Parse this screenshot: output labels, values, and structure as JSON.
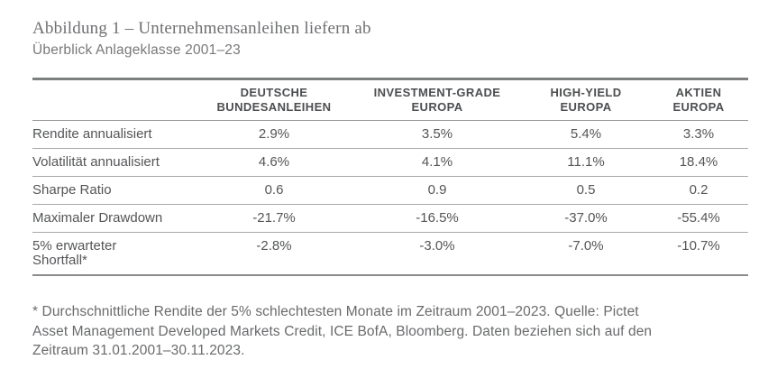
{
  "header": {
    "title": "Abbildung 1 – Unternehmensanleihen liefern ab",
    "subtitle": "Überblick Anlageklasse 2001–23"
  },
  "table": {
    "columns": [
      {
        "label": "DEUTSCHE\nBUNDESANLEIHEN"
      },
      {
        "label": "INVESTMENT-GRADE\nEUROPA"
      },
      {
        "label": "HIGH-YIELD\nEUROPA"
      },
      {
        "label": "AKTIEN\nEUROPA"
      }
    ],
    "rows": [
      {
        "label": "Rendite annualisiert",
        "values": [
          "2.9%",
          "3.5%",
          "5.4%",
          "3.3%"
        ]
      },
      {
        "label": "Volatilität annualisiert",
        "values": [
          "4.6%",
          "4.1%",
          "11.1%",
          "18.4%"
        ]
      },
      {
        "label": "Sharpe Ratio",
        "values": [
          "0.6",
          "0.9",
          "0.5",
          "0.2"
        ]
      },
      {
        "label": "Maximaler Drawdown",
        "values": [
          "-21.7%",
          "-16.5%",
          "-37.0%",
          "-55.4%"
        ]
      },
      {
        "label": "5% erwarteter\nShortfall*",
        "values": [
          "-2.8%",
          "-3.0%",
          "-7.0%",
          "-10.7%"
        ]
      }
    ]
  },
  "footnote": {
    "lines": [
      "* Durchschnittliche Rendite der 5% schlechtesten Monate im Zeitraum 2001–2023. Quelle: Pictet",
      "Asset Management Developed Markets Credit, ICE BofA, Bloomberg. Daten beziehen sich auf den",
      "Zeitraum 31.01.2001–30.11.2023."
    ]
  },
  "colors": {
    "title": "#6e6f71",
    "subtitle": "#77787a",
    "header_text": "#4d4e50",
    "body_text": "#545557",
    "border_top": "#7e7f81",
    "border_row": "#a7a8aa",
    "footnote": "#696a6c",
    "background": "#ffffff"
  }
}
